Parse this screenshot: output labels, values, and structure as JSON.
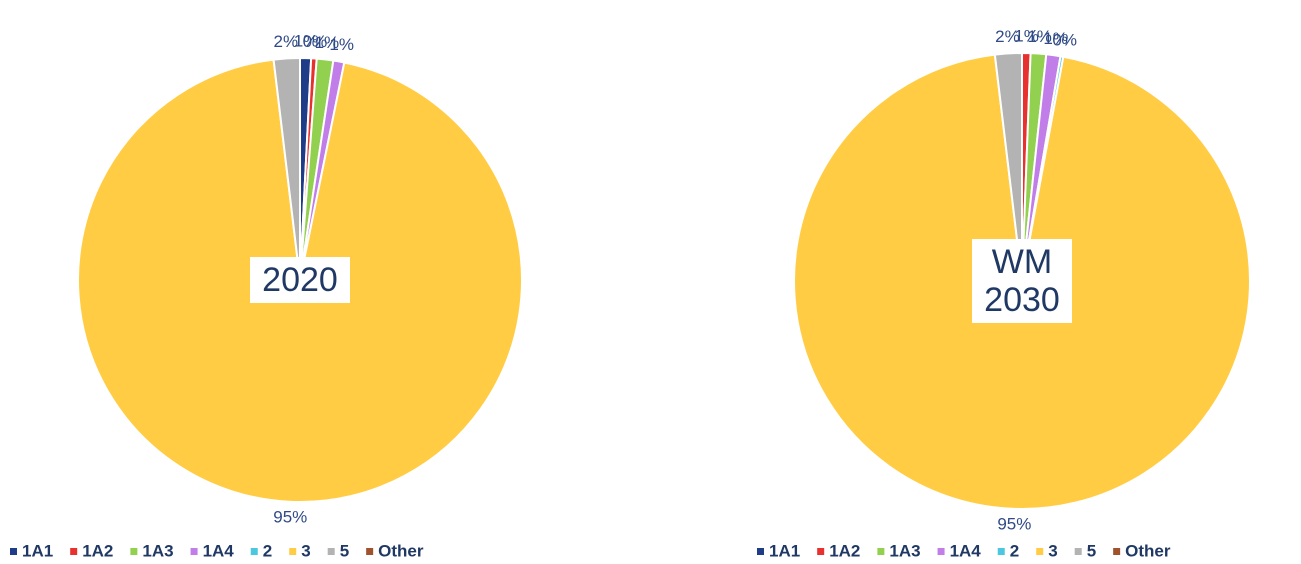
{
  "chart_data": [
    {
      "type": "pie",
      "title": "2020",
      "categories": [
        "1A1",
        "1A2",
        "1A3",
        "1A4",
        "2",
        "3",
        "5",
        "Other"
      ],
      "values": [
        0.8,
        0.4,
        1.2,
        0.8,
        0,
        94.9,
        1.9,
        0
      ],
      "value_labels": [
        "1%",
        "0%",
        "1%",
        "1%",
        null,
        "95%",
        "2%",
        null
      ],
      "colors": [
        "#1f3c88",
        "#e8312f",
        "#92d050",
        "#c17ee8",
        "#4bc8e0",
        "#ffcc44",
        "#b3b3b3",
        "#a0522d"
      ]
    },
    {
      "type": "pie",
      "title": "WM 2030",
      "categories": [
        "1A1",
        "1A2",
        "1A3",
        "1A4",
        "2",
        "3",
        "5",
        "Other"
      ],
      "values": [
        0,
        0.6,
        1.1,
        1.0,
        0.2,
        95.2,
        1.9,
        0
      ],
      "value_labels": [
        null,
        "1%",
        "1%",
        "1%",
        "0%",
        "95%",
        "2%",
        null
      ],
      "colors": [
        "#1f3c88",
        "#e8312f",
        "#92d050",
        "#c17ee8",
        "#4bc8e0",
        "#ffcc44",
        "#b3b3b3",
        "#a0522d"
      ]
    }
  ]
}
